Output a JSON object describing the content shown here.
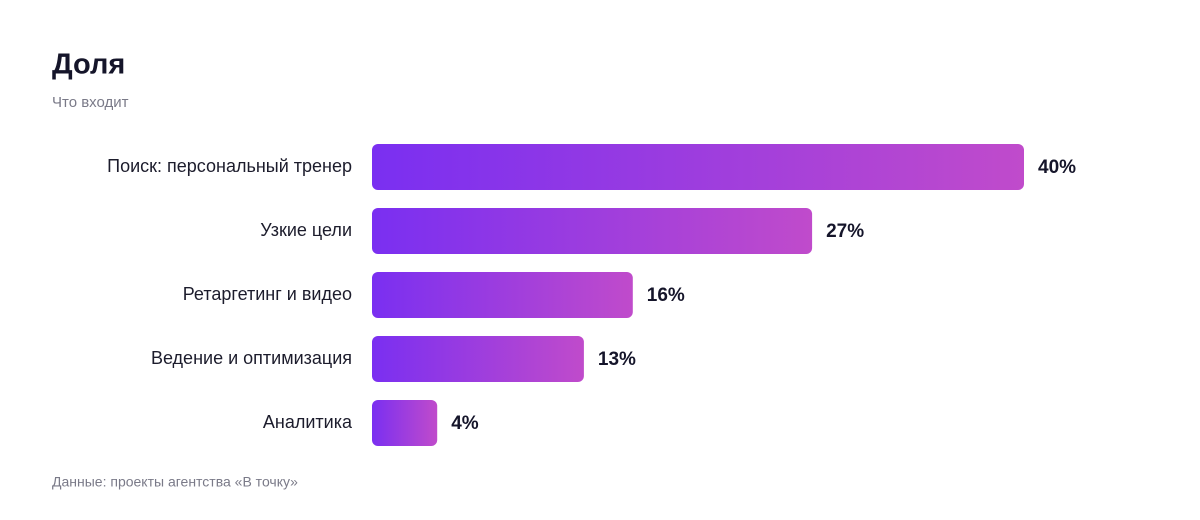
{
  "chart_data": {
    "type": "bar",
    "orientation": "horizontal",
    "title": "Доля",
    "subtitle": "Что входит",
    "source": "Данные: проекты агентства «В точку»",
    "categories": [
      "Поиск: персональный тренер",
      "Узкие цели",
      "Ретаргетинг и видео",
      "Ведение и оптимизация",
      "Аналитика"
    ],
    "values": [
      40,
      27,
      16,
      13,
      4
    ],
    "value_labels": [
      "40%",
      "27%",
      "16%",
      "13%",
      "4%"
    ],
    "gradient": [
      "#7a2ff1",
      "#c04bcb"
    ]
  }
}
